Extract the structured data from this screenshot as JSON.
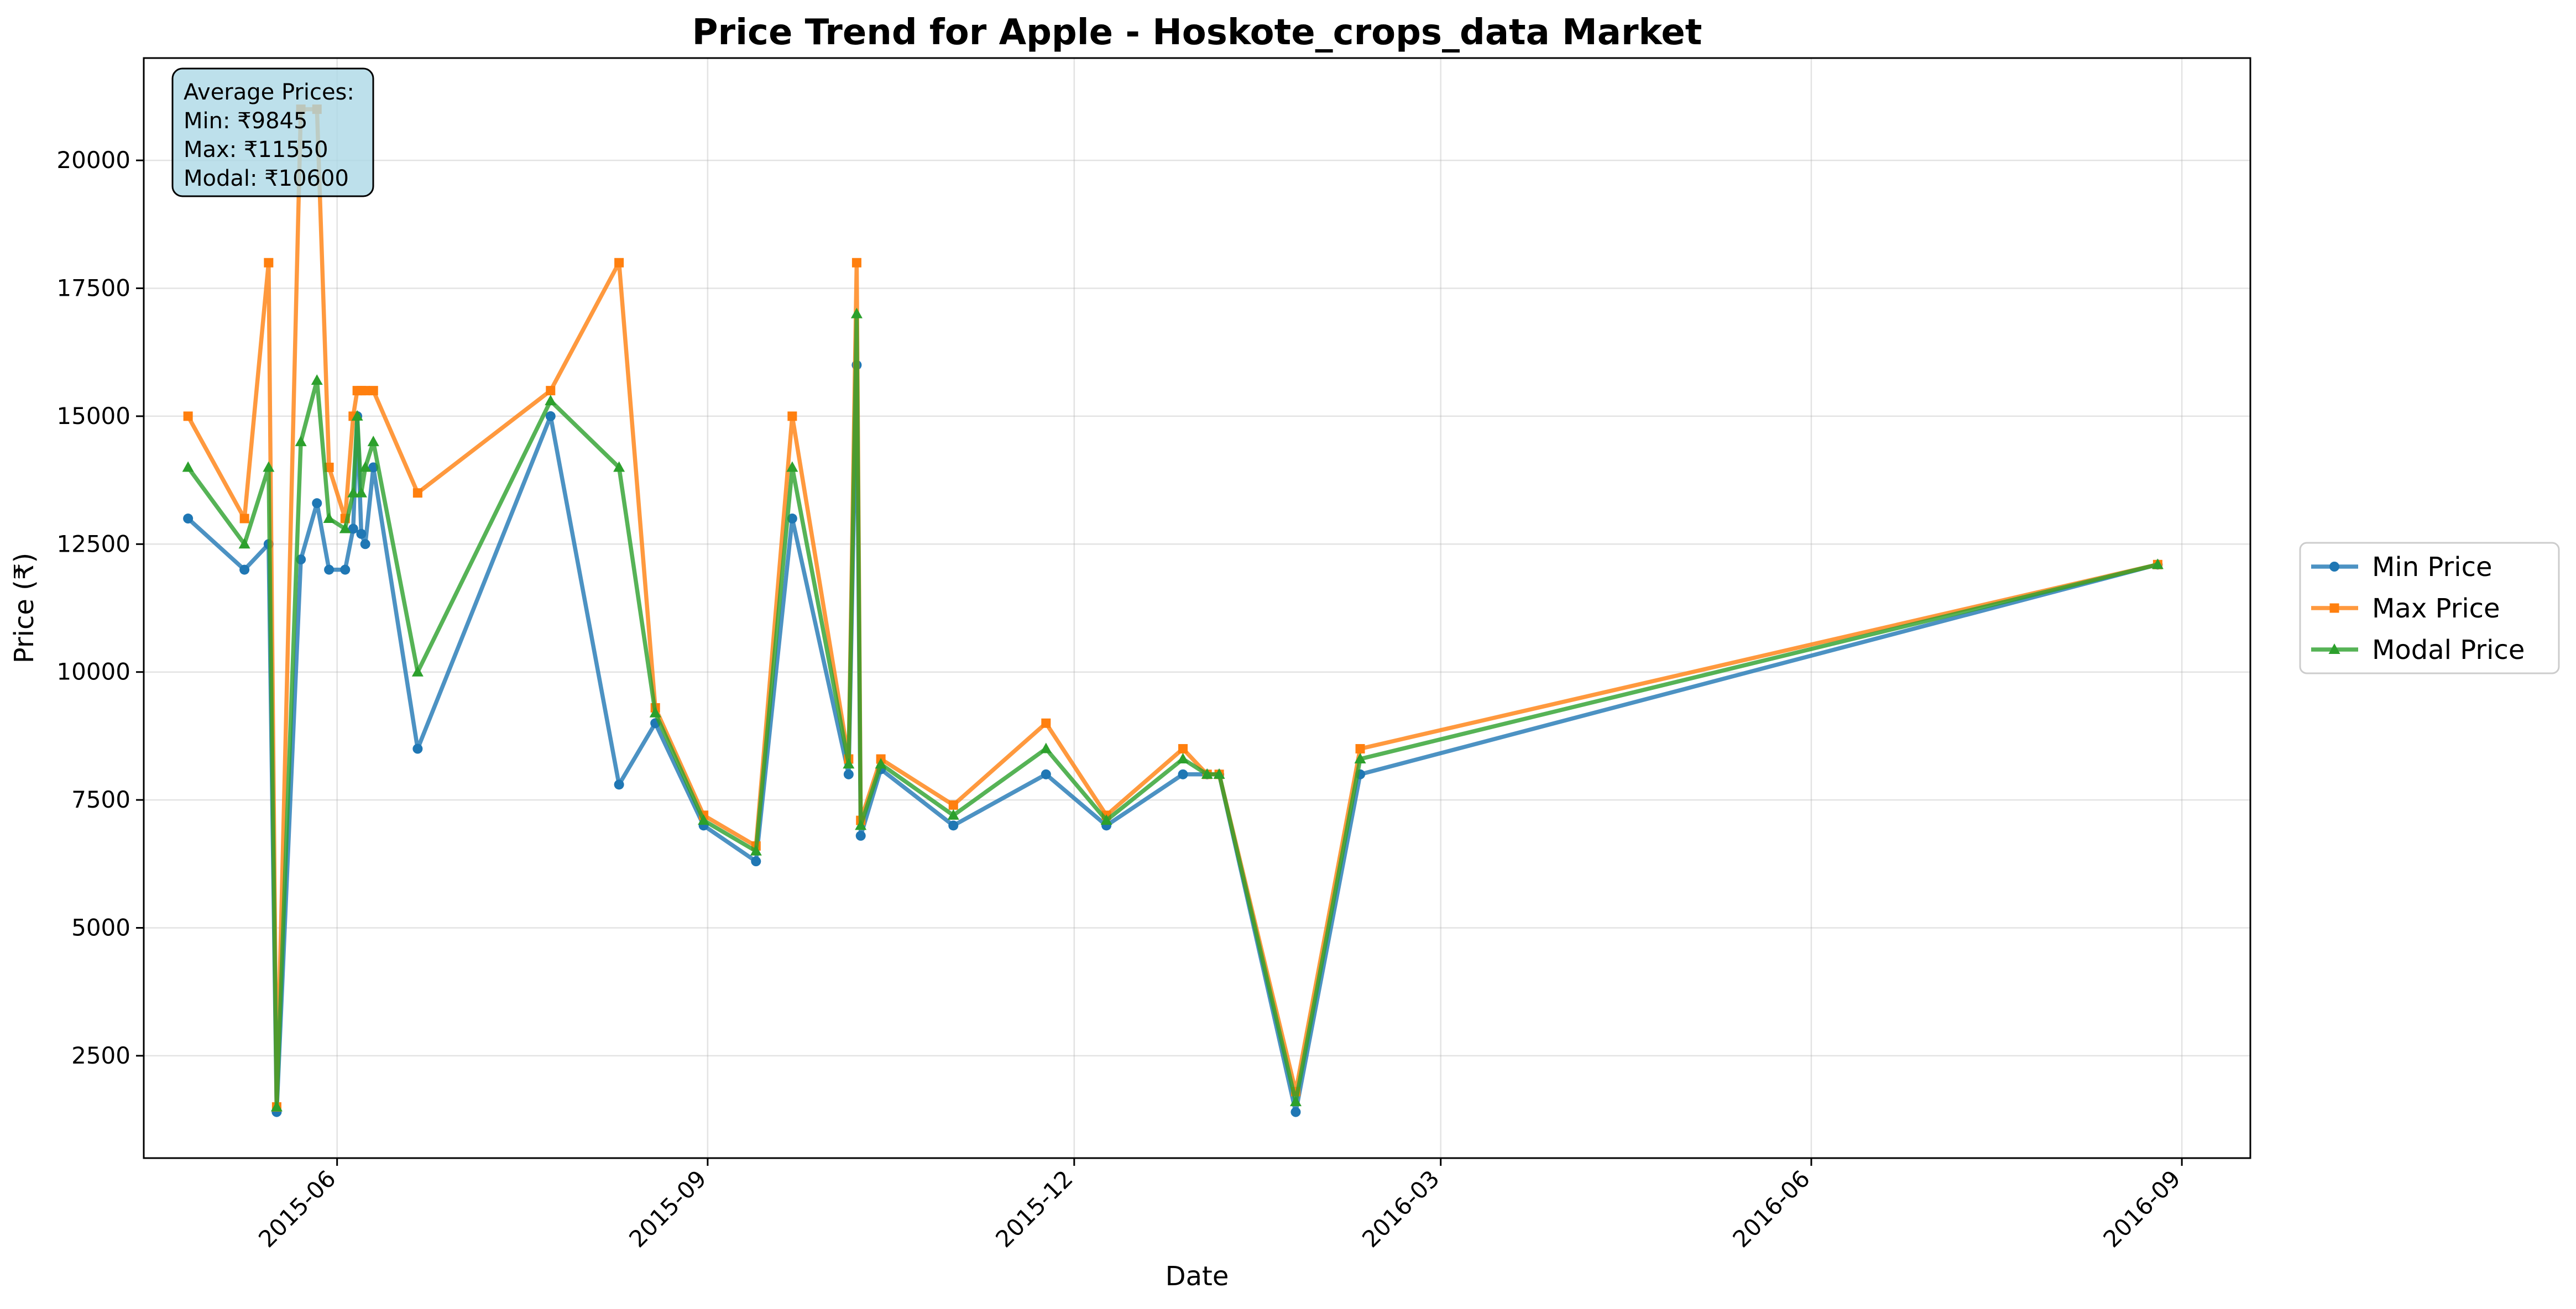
{
  "chart_data": {
    "type": "line",
    "title": "Price Trend for Apple - Hoskote_crops_data Market",
    "xlabel": "Date",
    "ylabel": "Price (₹)",
    "x_axis_type": "date",
    "xlim": [
      "2015-04-14",
      "2016-09-18"
    ],
    "ylim": [
      500,
      22000
    ],
    "x_ticks": [
      "2015-06",
      "2015-09",
      "2015-12",
      "2016-03",
      "2016-06",
      "2016-09"
    ],
    "x_tick_dates": [
      "2015-06-01",
      "2015-09-01",
      "2015-12-01",
      "2016-03-01",
      "2016-06-01",
      "2016-09-01"
    ],
    "y_ticks": [
      2500,
      5000,
      7500,
      10000,
      12500,
      15000,
      17500,
      20000
    ],
    "grid": true,
    "legend_position": "right-outside",
    "stats_box": {
      "lines": [
        "Average Prices:",
        "Min: ₹9845",
        "Max: ₹11550",
        "Modal: ₹10600"
      ]
    },
    "x": [
      "2015-04-25",
      "2015-05-09",
      "2015-05-15",
      "2015-05-17",
      "2015-05-23",
      "2015-05-27",
      "2015-05-30",
      "2015-06-03",
      "2015-06-05",
      "2015-06-06",
      "2015-06-07",
      "2015-06-08",
      "2015-06-10",
      "2015-06-21",
      "2015-07-24",
      "2015-08-10",
      "2015-08-19",
      "2015-08-31",
      "2015-09-13",
      "2015-09-22",
      "2015-10-06",
      "2015-10-08",
      "2015-10-09",
      "2015-10-14",
      "2015-11-01",
      "2015-11-24",
      "2015-12-09",
      "2015-12-28",
      "2016-01-03",
      "2016-01-06",
      "2016-01-25",
      "2016-02-10",
      "2016-08-26"
    ],
    "series": [
      {
        "name": "Min Price",
        "color": "#1f77b4",
        "marker": "circle",
        "values": [
          13000,
          12000,
          12500,
          1400,
          12200,
          13300,
          12000,
          12000,
          12800,
          15000,
          12700,
          12500,
          14000,
          8500,
          15000,
          7800,
          9000,
          7000,
          6300,
          13000,
          8000,
          16000,
          6800,
          8100,
          7000,
          8000,
          7000,
          8000,
          8000,
          8000,
          1400,
          8000,
          12100
        ]
      },
      {
        "name": "Max Price",
        "color": "#ff7f0e",
        "marker": "square",
        "values": [
          15000,
          13000,
          18000,
          1500,
          21000,
          21000,
          14000,
          13000,
          15000,
          15500,
          15500,
          15500,
          15500,
          13500,
          15500,
          18000,
          9300,
          7200,
          6600,
          15000,
          8300,
          18000,
          7100,
          8300,
          7400,
          9000,
          7200,
          8500,
          8000,
          8000,
          1800,
          8500,
          12100
        ]
      },
      {
        "name": "Modal Price",
        "color": "#2ca02c",
        "marker": "triangle",
        "values": [
          14000,
          12500,
          14000,
          1500,
          14500,
          15700,
          13000,
          12800,
          13500,
          15000,
          13500,
          14000,
          14500,
          10000,
          15300,
          14000,
          9200,
          7100,
          6500,
          14000,
          8200,
          17000,
          7000,
          8200,
          7200,
          8500,
          7100,
          8300,
          8000,
          8000,
          1600,
          8300,
          12100
        ]
      }
    ]
  }
}
